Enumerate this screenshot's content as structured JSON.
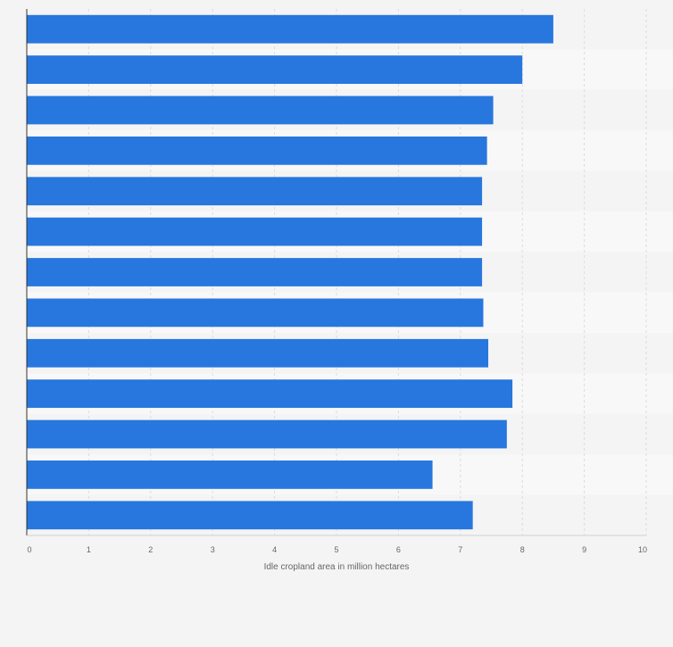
{
  "chart_data": {
    "type": "bar",
    "orientation": "horizontal",
    "categories": [
      "",
      "",
      "",
      "",
      "",
      "",
      "",
      "",
      "",
      "",
      "",
      "",
      ""
    ],
    "values": [
      8.5,
      8.0,
      7.53,
      7.43,
      7.35,
      7.35,
      7.35,
      7.37,
      7.45,
      7.84,
      7.75,
      6.55,
      7.2
    ],
    "title": "",
    "xlabel": "Idle cropland area in million hectares",
    "ylabel": "",
    "xlim": [
      0,
      10
    ],
    "xticks": [
      "0",
      "1",
      "2",
      "3",
      "4",
      "5",
      "6",
      "7",
      "8",
      "9",
      "10"
    ],
    "grid": true,
    "legend": "none",
    "bar_color": "#2777de"
  }
}
